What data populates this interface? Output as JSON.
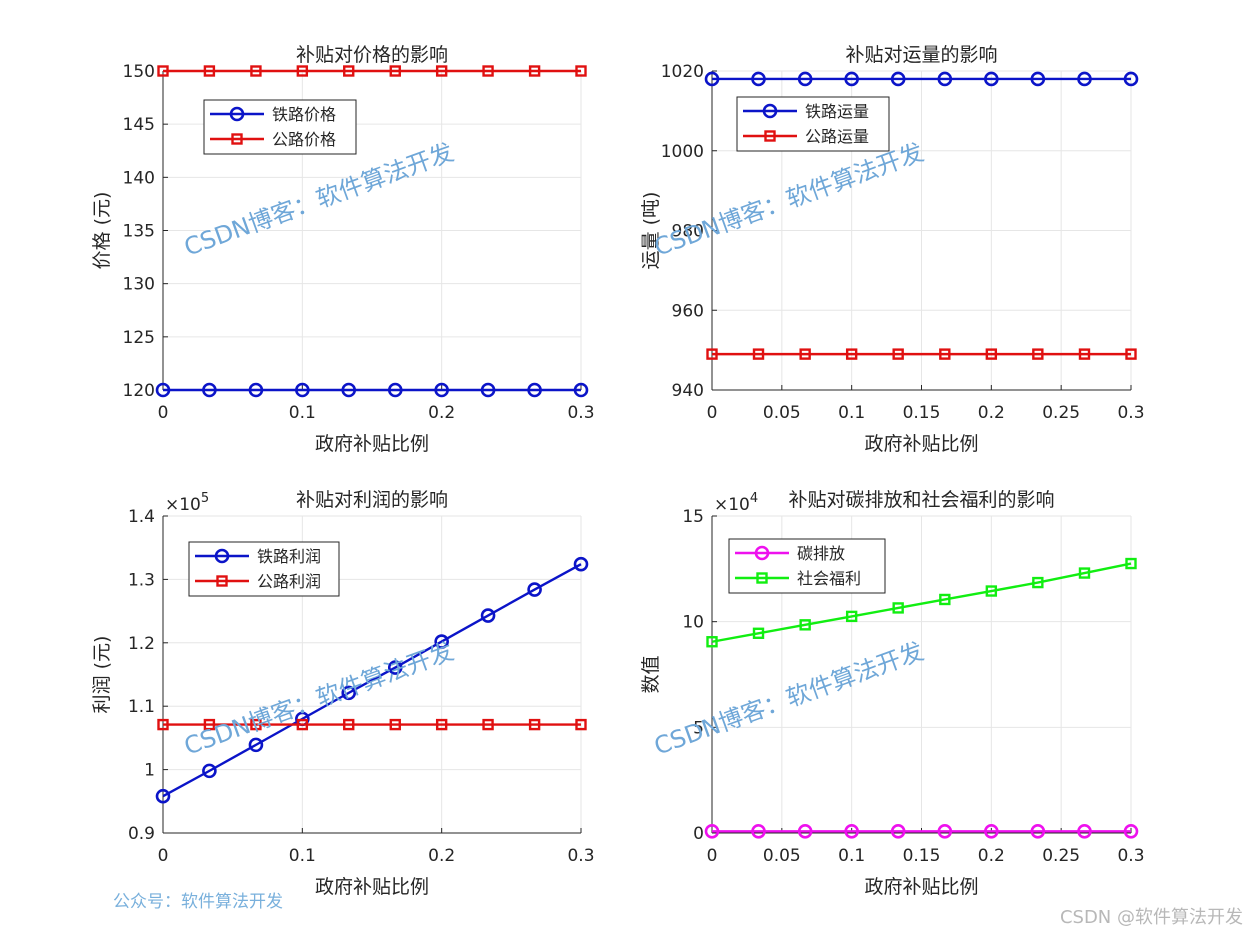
{
  "colors": {
    "railway_blue": "#0b14c8",
    "highway_red": "#e01010",
    "emission_magenta": "#ee11ee",
    "welfare_green": "#11ee11",
    "grid": "#e6e6e6",
    "watermark": "#6fa7d8"
  },
  "chart_data": [
    {
      "type": "line",
      "title": "补贴对价格的影响",
      "xlabel": "政府补贴比例",
      "ylabel": "价格 (元)",
      "x": [
        0,
        0.0333,
        0.0667,
        0.1,
        0.1333,
        0.1667,
        0.2,
        0.2333,
        0.2667,
        0.3
      ],
      "xlim": [
        0,
        0.3
      ],
      "xticks": [
        0,
        0.1,
        0.2,
        0.3
      ],
      "xtick_labels": [
        "0",
        "0.1",
        "0.2",
        "0.3"
      ],
      "ylim": [
        120,
        150
      ],
      "yticks": [
        120,
        125,
        130,
        135,
        140,
        145,
        150
      ],
      "ytick_labels": [
        "120",
        "125",
        "130",
        "135",
        "140",
        "145",
        "150"
      ],
      "grid": true,
      "legend_position": "top-left",
      "series": [
        {
          "name": "铁路价格",
          "color": "#0b14c8",
          "marker": "circle",
          "values": [
            120,
            120,
            120,
            120,
            120,
            120,
            120,
            120,
            120,
            120
          ]
        },
        {
          "name": "公路价格",
          "color": "#e01010",
          "marker": "square",
          "values": [
            150,
            150,
            150,
            150,
            150,
            150,
            150,
            150,
            150,
            150
          ]
        }
      ]
    },
    {
      "type": "line",
      "title": "补贴对运量的影响",
      "xlabel": "政府补贴比例",
      "ylabel": "运量 (吨)",
      "x": [
        0,
        0.0333,
        0.0667,
        0.1,
        0.1333,
        0.1667,
        0.2,
        0.2333,
        0.2667,
        0.3
      ],
      "xlim": [
        0,
        0.3
      ],
      "xticks": [
        0,
        0.05,
        0.1,
        0.15,
        0.2,
        0.25,
        0.3
      ],
      "xtick_labels": [
        "0",
        "0.05",
        "0.1",
        "0.15",
        "0.2",
        "0.25",
        "0.3"
      ],
      "ylim": [
        940,
        1020
      ],
      "yticks": [
        940,
        960,
        980,
        1000,
        1020
      ],
      "ytick_labels": [
        "940",
        "960",
        "980",
        "1000",
        "1020"
      ],
      "grid": true,
      "legend_position": "top-left",
      "series": [
        {
          "name": "铁路运量",
          "color": "#0b14c8",
          "marker": "circle",
          "values": [
            1018,
            1018,
            1018,
            1018,
            1018,
            1018,
            1018,
            1018,
            1018,
            1018
          ]
        },
        {
          "name": "公路运量",
          "color": "#e01010",
          "marker": "square",
          "values": [
            949,
            949,
            949,
            949,
            949,
            949,
            949,
            949,
            949,
            949
          ]
        }
      ]
    },
    {
      "type": "line",
      "title": "补贴对利润的影响",
      "xlabel": "政府补贴比例",
      "ylabel": "利润 (元)",
      "y_multiplier_base": "×10",
      "y_multiplier_exp": "5",
      "x": [
        0,
        0.0333,
        0.0667,
        0.1,
        0.1333,
        0.1667,
        0.2,
        0.2333,
        0.2667,
        0.3
      ],
      "xlim": [
        0,
        0.3
      ],
      "xticks": [
        0,
        0.1,
        0.2,
        0.3
      ],
      "xtick_labels": [
        "0",
        "0.1",
        "0.2",
        "0.3"
      ],
      "ylim": [
        0.9,
        1.4
      ],
      "yticks": [
        0.9,
        1.0,
        1.1,
        1.2,
        1.3,
        1.4
      ],
      "ytick_labels": [
        "0.9",
        "1",
        "1.1",
        "1.2",
        "1.3",
        "1.4"
      ],
      "grid": true,
      "legend_position": "top-left",
      "series": [
        {
          "name": "铁路利润",
          "color": "#0b14c8",
          "marker": "circle",
          "values": [
            0.958,
            0.998,
            1.039,
            1.08,
            1.121,
            1.161,
            1.202,
            1.243,
            1.284,
            1.324
          ]
        },
        {
          "name": "公路利润",
          "color": "#e01010",
          "marker": "square",
          "values": [
            1.071,
            1.071,
            1.071,
            1.071,
            1.071,
            1.071,
            1.071,
            1.071,
            1.071,
            1.071
          ]
        }
      ]
    },
    {
      "type": "line",
      "title": "补贴对碳排放和社会福利的影响",
      "xlabel": "政府补贴比例",
      "ylabel": "数值",
      "y_multiplier_base": "×10",
      "y_multiplier_exp": "4",
      "x": [
        0,
        0.0333,
        0.0667,
        0.1,
        0.1333,
        0.1667,
        0.2,
        0.2333,
        0.2667,
        0.3
      ],
      "xlim": [
        0,
        0.3
      ],
      "xticks": [
        0,
        0.05,
        0.1,
        0.15,
        0.2,
        0.25,
        0.3
      ],
      "xtick_labels": [
        "0",
        "0.05",
        "0.1",
        "0.15",
        "0.2",
        "0.25",
        "0.3"
      ],
      "ylim": [
        0,
        15
      ],
      "yticks": [
        0,
        5,
        10,
        15
      ],
      "ytick_labels": [
        "0",
        "5",
        "10",
        "15"
      ],
      "grid": true,
      "legend_position": "top-left",
      "series": [
        {
          "name": "碳排放",
          "color": "#ee11ee",
          "marker": "circle",
          "values": [
            0.08,
            0.08,
            0.08,
            0.08,
            0.08,
            0.08,
            0.08,
            0.08,
            0.08,
            0.08
          ]
        },
        {
          "name": "社会福利",
          "color": "#11ee11",
          "marker": "square",
          "values": [
            9.05,
            9.45,
            9.85,
            10.25,
            10.65,
            11.05,
            11.45,
            11.85,
            12.3,
            12.75
          ]
        }
      ]
    }
  ],
  "watermarks": {
    "diagonal": "CSDN博客：软件算法开发",
    "footer": "公众号：软件算法开发",
    "corner": "CSDN @软件算法开发"
  }
}
